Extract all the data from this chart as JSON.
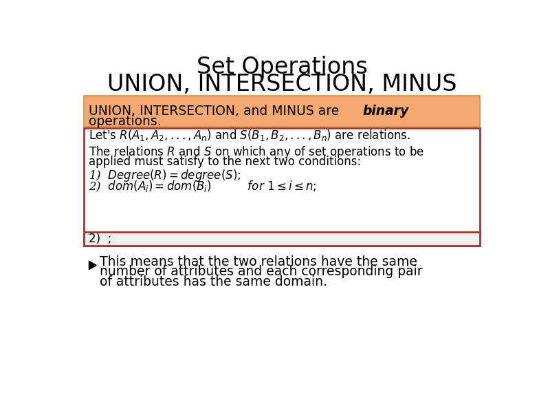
{
  "title_line1": "Set Operations",
  "title_line2": "UNION, INTERSECTION, MINUS",
  "bg_color": "#ffffff",
  "orange_box_color": "#F5A870",
  "red_border_color": "#B03030",
  "gray_row_color": "#F0F0F0",
  "gray_row_text": "2)  ;",
  "bullet_lines": [
    "This means that the two relations have the same",
    "number of attributes and each corresponding pair",
    "of attributes has the same domain."
  ]
}
